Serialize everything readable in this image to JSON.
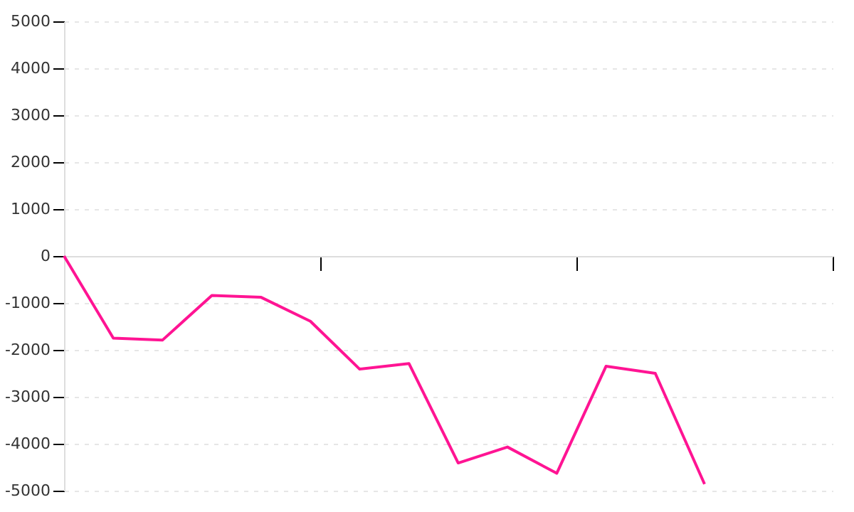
{
  "chart_data": {
    "type": "line",
    "categories": [
      null,
      null,
      null,
      null,
      null,
      null,
      null,
      null,
      null,
      null,
      null,
      null,
      null,
      null
    ],
    "series": [
      {
        "color": "#ff1493",
        "values": [
          0,
          -1750,
          -1790,
          -840,
          -880,
          -1390,
          -2410,
          -2290,
          -4410,
          -4070,
          -4630,
          -2350,
          -2500,
          -4860
        ]
      }
    ],
    "ylim": [
      -5000,
      5000
    ],
    "yticks": [
      -5000,
      -4000,
      -3000,
      -2000,
      -1000,
      0,
      1000,
      2000,
      3000,
      4000,
      5000
    ],
    "grid": "y",
    "tick_labels": "y",
    "marker": "none",
    "line_style": "solid"
  }
}
